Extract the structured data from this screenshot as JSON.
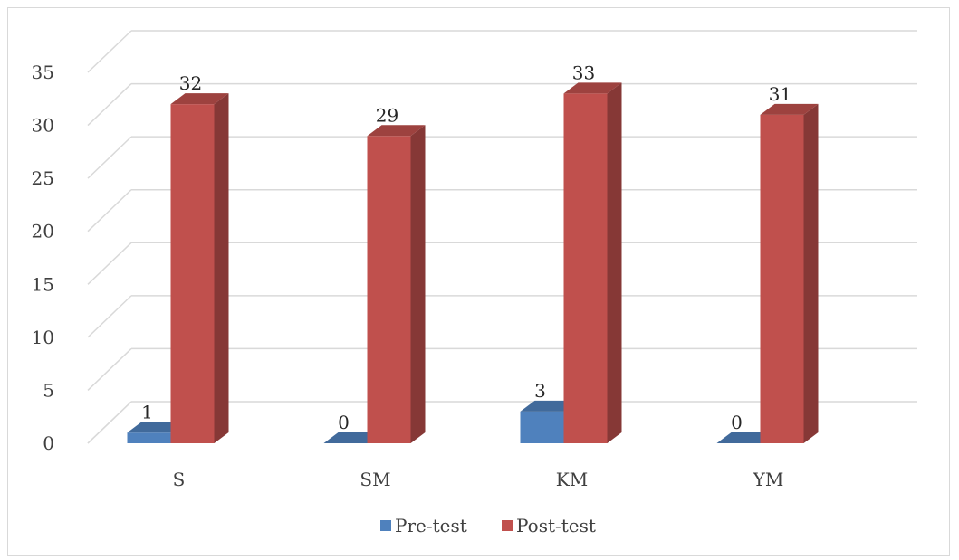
{
  "chart_data": {
    "type": "bar",
    "style": "3d-clustered-column",
    "categories": [
      "S",
      "SM",
      "KM",
      "YM"
    ],
    "series": [
      {
        "name": "Pre-test",
        "values": [
          1,
          0,
          3,
          0
        ],
        "color": "#4f81bd"
      },
      {
        "name": "Post-test",
        "values": [
          32,
          29,
          33,
          31
        ],
        "color": "#c0504d"
      }
    ],
    "yticks": [
      "0",
      "5",
      "10",
      "15",
      "20",
      "25",
      "30",
      "35"
    ],
    "ylim": [
      0,
      35
    ],
    "grid": true,
    "legend": "bottom",
    "data_labels": true
  }
}
